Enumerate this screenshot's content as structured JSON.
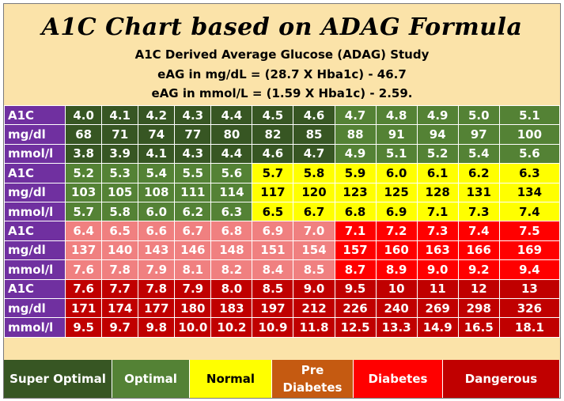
{
  "chart_data": {
    "type": "table",
    "title": "A1C Chart based on ADAG Formula",
    "subtitle_lines": [
      "A1C Derived Average Glucose (ADAG) Study",
      "eAG in mg/dL = (28.7 X Hba1c) - 46.7",
      "eAG in mmol/L = (1.59 X Hba1c) - 2.59."
    ],
    "row_labels": [
      "A1C",
      "mg/dl",
      "mmol/l"
    ],
    "blocks": [
      {
        "A1C": [
          "4.0",
          "4.1",
          "4.2",
          "4.3",
          "4.4",
          "4.5",
          "4.6",
          "4.7",
          "4.8",
          "4.9",
          "5.0",
          "5.1"
        ],
        "mg/dl": [
          "68",
          "71",
          "74",
          "77",
          "80",
          "82",
          "85",
          "88",
          "91",
          "94",
          "97",
          "100"
        ],
        "mmol/l": [
          "3.8",
          "3.9",
          "4.1",
          "4.3",
          "4.4",
          "4.6",
          "4.7",
          "4.9",
          "5.1",
          "5.2",
          "5.4",
          "5.6"
        ],
        "categories": [
          "super",
          "super",
          "super",
          "super",
          "super",
          "super",
          "super",
          "optimal",
          "optimal",
          "optimal",
          "optimal",
          "optimal"
        ]
      },
      {
        "A1C": [
          "5.2",
          "5.3",
          "5.4",
          "5.5",
          "5.6",
          "5.7",
          "5.8",
          "5.9",
          "6.0",
          "6.1",
          "6.2",
          "6.3"
        ],
        "mg/dl": [
          "103",
          "105",
          "108",
          "111",
          "114",
          "117",
          "120",
          "123",
          "125",
          "128",
          "131",
          "134"
        ],
        "mmol/l": [
          "5.7",
          "5.8",
          "6.0",
          "6.2",
          "6.3",
          "6.5",
          "6.7",
          "6.8",
          "6.9",
          "7.1",
          "7.3",
          "7.4"
        ],
        "categories": [
          "optimal",
          "optimal",
          "optimal",
          "optimal",
          "optimal",
          "normal",
          "normal",
          "normal",
          "normal",
          "normal",
          "normal",
          "normal"
        ]
      },
      {
        "A1C": [
          "6.4",
          "6.5",
          "6.6",
          "6.7",
          "6.8",
          "6.9",
          "7.0",
          "7.1",
          "7.2",
          "7.3",
          "7.4",
          "7.5"
        ],
        "mg/dl": [
          "137",
          "140",
          "143",
          "146",
          "148",
          "151",
          "154",
          "157",
          "160",
          "163",
          "166",
          "169"
        ],
        "mmol/l": [
          "7.6",
          "7.8",
          "7.9",
          "8.1",
          "8.2",
          "8.4",
          "8.5",
          "8.7",
          "8.9",
          "9.0",
          "9.2",
          "9.4"
        ],
        "categories": [
          "pre",
          "pre",
          "pre",
          "pre",
          "pre",
          "pre",
          "pre",
          "diab",
          "diab",
          "diab",
          "diab",
          "diab"
        ]
      },
      {
        "A1C": [
          "7.6",
          "7.7",
          "7.8",
          "7.9",
          "8.0",
          "8.5",
          "9.0",
          "9.5",
          "10",
          "11",
          "12",
          "13"
        ],
        "mg/dl": [
          "171",
          "174",
          "177",
          "180",
          "183",
          "197",
          "212",
          "226",
          "240",
          "269",
          "298",
          "326"
        ],
        "mmol/l": [
          "9.5",
          "9.7",
          "9.8",
          "10.0",
          "10.2",
          "10.9",
          "11.8",
          "12.5",
          "13.3",
          "14.9",
          "16.5",
          "18.1"
        ],
        "categories": [
          "dang",
          "dang",
          "dang",
          "dang",
          "dang",
          "dang",
          "dang",
          "dang",
          "dang",
          "dang",
          "dang",
          "dang"
        ]
      }
    ],
    "legend": [
      {
        "key": "super",
        "label": "Super Optimal",
        "color": "#375623"
      },
      {
        "key": "optimal",
        "label": "Optimal",
        "color": "#548235"
      },
      {
        "key": "normal",
        "label": "Normal",
        "color": "#ffff00"
      },
      {
        "key": "pre",
        "label": "Pre Diabetes",
        "color": "#c55a11"
      },
      {
        "key": "diab",
        "label": "Diabetes",
        "color": "#ff0000"
      },
      {
        "key": "dang",
        "label": "Dangerous",
        "color": "#c00000"
      }
    ]
  }
}
